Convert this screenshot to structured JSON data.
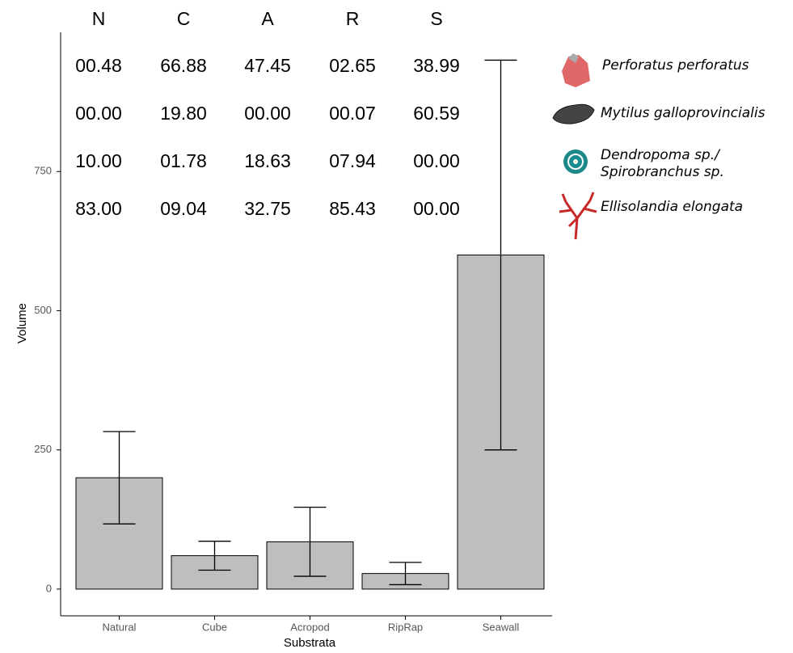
{
  "chart_data": {
    "type": "bar",
    "categories": [
      "Natural",
      "Cube",
      "Acropod",
      "RipRap",
      "Seawall"
    ],
    "values": [
      200,
      60,
      85,
      28,
      600
    ],
    "errors": [
      83,
      26,
      62,
      20,
      350
    ],
    "color": "#bebebe",
    "ylim": [
      -48,
      1000
    ],
    "yticks": [
      0,
      250,
      500,
      750
    ],
    "x_label": "Substrata",
    "y_label": "Volume"
  },
  "composition_table": {
    "headers": [
      "N",
      "C",
      "A",
      "R",
      "S"
    ],
    "rows": [
      [
        "00.48",
        "66.88",
        "47.45",
        "02.65",
        "38.99"
      ],
      [
        "00.00",
        "19.80",
        "00.00",
        "00.07",
        "60.59"
      ],
      [
        "10.00",
        "01.78",
        "18.63",
        "07.94",
        "00.00"
      ],
      [
        "83.00",
        "09.04",
        "32.75",
        "85.43",
        "00.00"
      ]
    ]
  },
  "legend": [
    [
      "Perforatus perforatus"
    ],
    [
      "Mytilus galloprovincialis"
    ],
    [
      "Dendropoma sp./",
      "Spirobranchus sp."
    ],
    [
      "Ellisolandia elongata"
    ]
  ]
}
